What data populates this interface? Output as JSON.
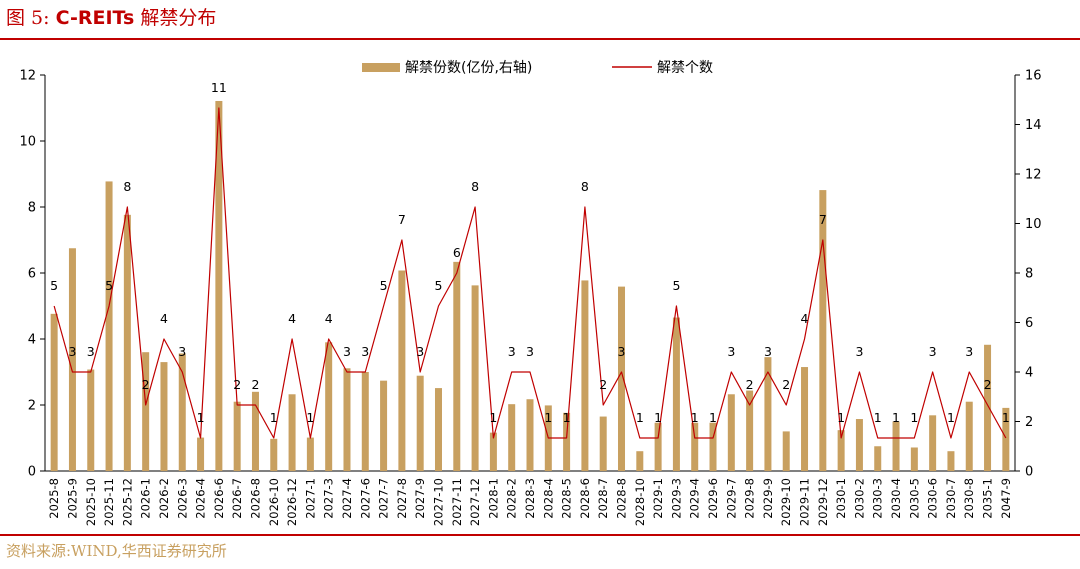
{
  "page": {
    "title_prefix": "图 5:",
    "title_latin": "C-REITs",
    "title_suffix": "解禁分布",
    "source": "资料来源:WIND,华西证券研究所",
    "rule_color": "#c00000"
  },
  "chart_data": {
    "type": "bar",
    "title": "",
    "xlabel": "",
    "categories": [
      "2025-8",
      "2025-9",
      "2025-10",
      "2025-11",
      "2025-12",
      "2026-1",
      "2026-2",
      "2026-3",
      "2026-4",
      "2026-6",
      "2026-7",
      "2026-8",
      "2026-10",
      "2026-12",
      "2027-1",
      "2027-3",
      "2027-4",
      "2027-6",
      "2027-7",
      "2027-8",
      "2027-9",
      "2027-10",
      "2027-11",
      "2027-12",
      "2028-1",
      "2028-2",
      "2028-3",
      "2028-4",
      "2028-5",
      "2028-6",
      "2028-7",
      "2028-8",
      "2028-10",
      "2029-1",
      "2029-3",
      "2029-4",
      "2029-6",
      "2029-7",
      "2029-8",
      "2029-9",
      "2029-10",
      "2029-11",
      "2029-12",
      "2030-1",
      "2030-2",
      "2030-3",
      "2030-4",
      "2030-5",
      "2030-6",
      "2030-7",
      "2030-8",
      "2035-1",
      "2047-9"
    ],
    "series": [
      {
        "name": "解禁份数(亿份,右轴)",
        "type": "bar",
        "axis": "right",
        "color": "#c8a060",
        "values": [
          6.35,
          9.0,
          4.1,
          11.7,
          10.35,
          4.8,
          4.4,
          4.75,
          1.35,
          14.95,
          2.8,
          3.2,
          1.3,
          3.1,
          1.35,
          5.2,
          4.15,
          4.0,
          3.65,
          8.1,
          3.85,
          3.35,
          8.45,
          7.5,
          1.55,
          2.7,
          2.9,
          2.65,
          2.35,
          7.7,
          2.2,
          7.45,
          0.8,
          1.95,
          6.2,
          1.95,
          1.95,
          3.1,
          3.25,
          4.6,
          1.6,
          4.2,
          11.35,
          1.65,
          2.1,
          1.0,
          2.0,
          0.95,
          2.25,
          0.8,
          2.8,
          5.1,
          2.55
        ]
      },
      {
        "name": "解禁个数",
        "type": "line",
        "axis": "left",
        "color": "#c00000",
        "values": [
          5,
          3,
          3,
          5,
          8,
          2,
          4,
          3,
          1,
          11,
          2,
          2,
          1,
          4,
          1,
          4,
          3,
          3,
          5,
          7,
          3,
          5,
          6,
          8,
          1,
          3,
          3,
          1,
          1,
          8,
          2,
          3,
          1,
          1,
          5,
          1,
          1,
          3,
          2,
          3,
          2,
          4,
          7,
          1,
          3,
          1,
          1,
          1,
          3,
          1,
          3,
          2,
          1
        ]
      }
    ],
    "y_left": {
      "ylim": [
        0,
        12
      ],
      "ticks": [
        "0",
        "2",
        "4",
        "6",
        "8",
        "10",
        "12"
      ]
    },
    "y_right": {
      "ylim": [
        0,
        16
      ],
      "ticks": [
        "0",
        "2",
        "4",
        "6",
        "8",
        "10",
        "12",
        "14",
        "16"
      ]
    },
    "legend_position": "top-center",
    "grid": false
  }
}
